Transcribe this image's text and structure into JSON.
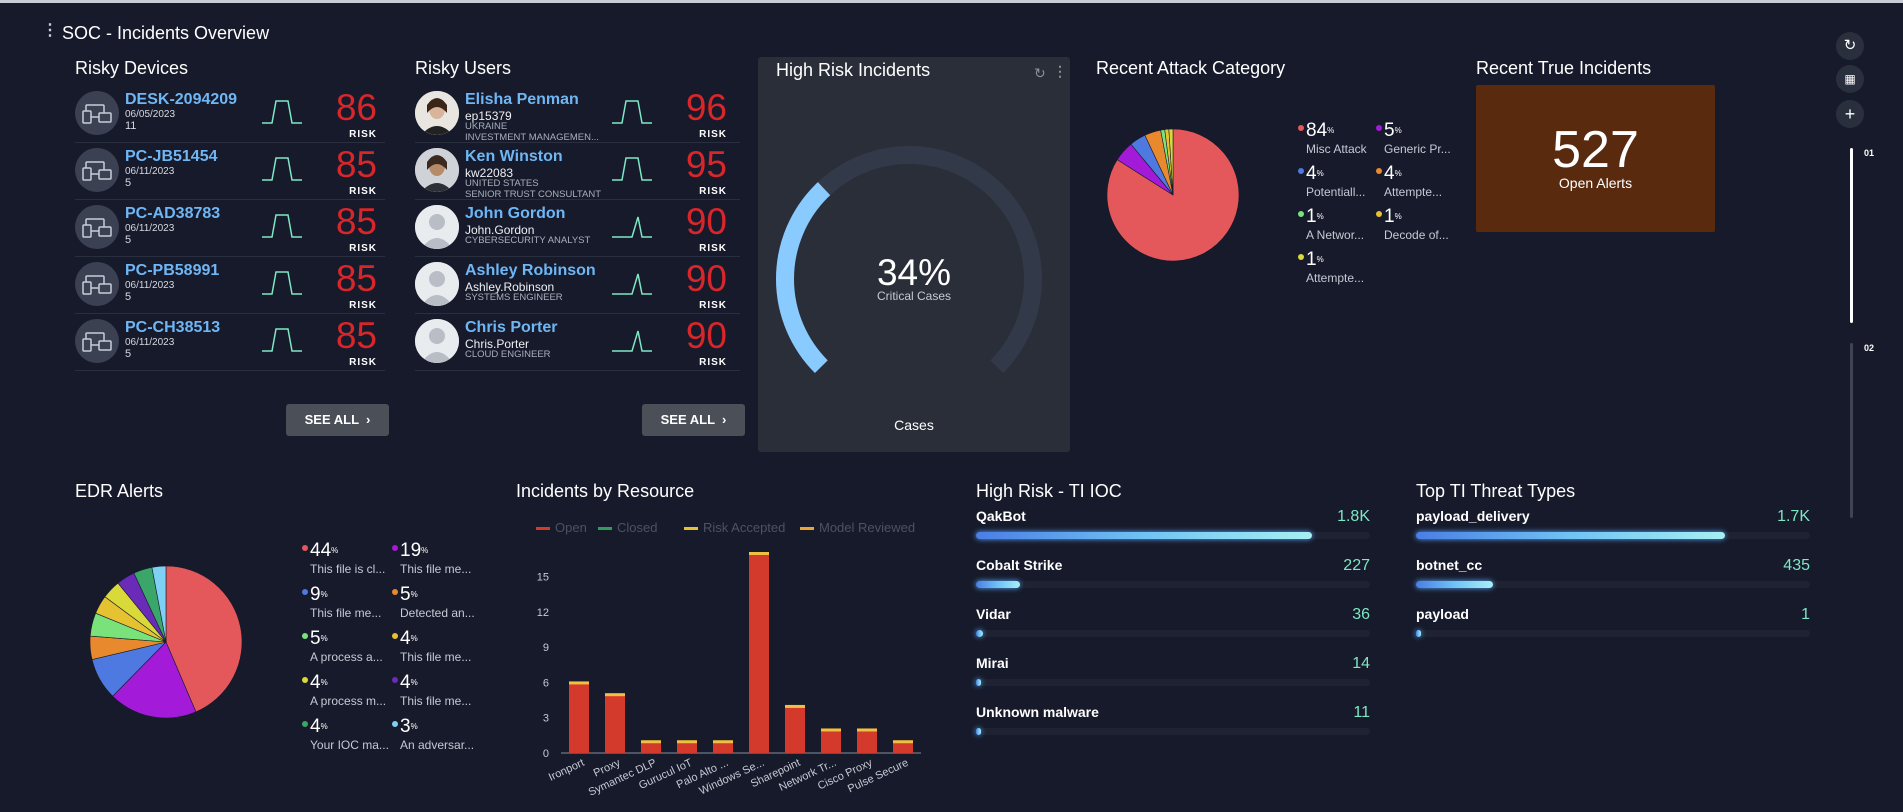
{
  "header": {
    "title": "SOC - Incidents Overview"
  },
  "risky_devices": {
    "title": "Risky Devices",
    "see_all": "SEE ALL",
    "risk_label": "RISK",
    "items": [
      {
        "name": "DESK-2094209",
        "date": "06/05/2023",
        "count": "11",
        "score": "86"
      },
      {
        "name": "PC-JB51454",
        "date": "06/11/2023",
        "count": "5",
        "score": "85"
      },
      {
        "name": "PC-AD38783",
        "date": "06/11/2023",
        "count": "5",
        "score": "85"
      },
      {
        "name": "PC-PB58991",
        "date": "06/11/2023",
        "count": "5",
        "score": "85"
      },
      {
        "name": "PC-CH38513",
        "date": "06/11/2023",
        "count": "5",
        "score": "85"
      }
    ]
  },
  "risky_users": {
    "title": "Risky Users",
    "see_all": "SEE ALL",
    "risk_label": "RISK",
    "items": [
      {
        "name": "Elisha Penman",
        "id": "ep15379",
        "country": "UKRAINE",
        "role": "INVESTMENT MANAGEMEN...",
        "score": "96"
      },
      {
        "name": "Ken Winston",
        "id": "kw22083",
        "country": "UNITED STATES",
        "role": "SENIOR TRUST CONSULTANT",
        "score": "95"
      },
      {
        "name": "John Gordon",
        "id": "John.Gordon",
        "country": "",
        "role": "CYBERSECURITY ANALYST",
        "score": "90"
      },
      {
        "name": "Ashley Robinson",
        "id": "Ashley.Robinson",
        "country": "",
        "role": "SYSTEMS ENGINEER",
        "score": "90"
      },
      {
        "name": "Chris Porter",
        "id": "Chris.Porter",
        "country": "",
        "role": "CLOUD ENGINEER",
        "score": "90"
      }
    ]
  },
  "high_risk_incidents": {
    "title": "High Risk Incidents",
    "percent": "34%",
    "percent_value": 34,
    "subtitle": "Critical Cases",
    "footer": "Cases"
  },
  "recent_attack_category": {
    "title": "Recent Attack Category",
    "items": [
      {
        "value": "84",
        "label": "Misc Attack",
        "color": "#e4585c"
      },
      {
        "value": "5",
        "label": "Generic Pr...",
        "color": "#a31bd9"
      },
      {
        "value": "4",
        "label": "Potentiall...",
        "color": "#4d79e0"
      },
      {
        "value": "4",
        "label": "Attempte...",
        "color": "#e9892d"
      },
      {
        "value": "1",
        "label": "A Networ...",
        "color": "#7ae27a"
      },
      {
        "value": "1",
        "label": "Decode of...",
        "color": "#e6c232"
      },
      {
        "value": "1",
        "label": "Attempte...",
        "color": "#d9d93a"
      }
    ]
  },
  "recent_true_incidents": {
    "title": "Recent True Incidents",
    "value": "527",
    "label": "Open Alerts",
    "color": "#5a2a0f"
  },
  "edr_alerts": {
    "title": "EDR Alerts",
    "items": [
      {
        "value": "44",
        "label": "This file is cl...",
        "color": "#e4585c"
      },
      {
        "value": "19",
        "label": "This file me...",
        "color": "#a31bd9"
      },
      {
        "value": "9",
        "label": "This file me...",
        "color": "#4d79e0"
      },
      {
        "value": "5",
        "label": "Detected an...",
        "color": "#e9892d"
      },
      {
        "value": "5",
        "label": "A process a...",
        "color": "#7ae27a"
      },
      {
        "value": "4",
        "label": "This file me...",
        "color": "#e6c232"
      },
      {
        "value": "4",
        "label": "A process m...",
        "color": "#d9d93a"
      },
      {
        "value": "4",
        "label": "This file me...",
        "color": "#6a2bb8"
      },
      {
        "value": "4",
        "label": "Your IOC ma...",
        "color": "#3aa66a"
      },
      {
        "value": "3",
        "label": "An adversar...",
        "color": "#7fd0f5"
      }
    ]
  },
  "incidents_by_resource": {
    "title": "Incidents by Resource",
    "legend": [
      {
        "name": "Open",
        "color": "#d33a2c"
      },
      {
        "name": "Closed",
        "color": "#2e9e5a"
      },
      {
        "name": "Risk Accepted",
        "color": "#e6c232"
      },
      {
        "name": "Model Reviewed",
        "color": "#e9a52d"
      }
    ]
  },
  "chart_data": {
    "type": "bar",
    "categories": [
      "Ironport",
      "Proxy",
      "Symantec DLP",
      "Gurucul IoT",
      "Palo Alto ...",
      "Windows Se...",
      "Sharepoint",
      "Network Tr...",
      "Cisco Proxy",
      "Pulse Secure"
    ],
    "series": [
      {
        "name": "Open",
        "values": [
          6,
          5,
          1,
          1,
          1,
          17,
          4,
          2,
          2,
          1
        ]
      }
    ],
    "ylim": [
      0,
      17
    ],
    "yticks": [
      "0",
      "3",
      "6",
      "9",
      "12",
      "15"
    ]
  },
  "ti_ioc": {
    "title": "High Risk - TI IOC",
    "items": [
      {
        "name": "QakBot",
        "value": "1.8K",
        "fraction": 1.0
      },
      {
        "name": "Cobalt Strike",
        "value": "227",
        "fraction": 0.13
      },
      {
        "name": "Vidar",
        "value": "36",
        "fraction": 0.02
      },
      {
        "name": "Mirai",
        "value": "14",
        "fraction": 0.008
      },
      {
        "name": "Unknown malware",
        "value": "11",
        "fraction": 0.006
      }
    ]
  },
  "ti_threat_types": {
    "title": "Top TI Threat Types",
    "items": [
      {
        "name": "payload_delivery",
        "value": "1.7K",
        "fraction": 1.0
      },
      {
        "name": "botnet_cc",
        "value": "435",
        "fraction": 0.25
      },
      {
        "name": "payload",
        "value": "1",
        "fraction": 0.001
      }
    ]
  },
  "sidebar": {
    "refresh_icon": "refresh-icon",
    "grid_icon": "grid-icon",
    "add_icon": "plus-icon",
    "scroll_labels": [
      "01",
      "02"
    ]
  }
}
